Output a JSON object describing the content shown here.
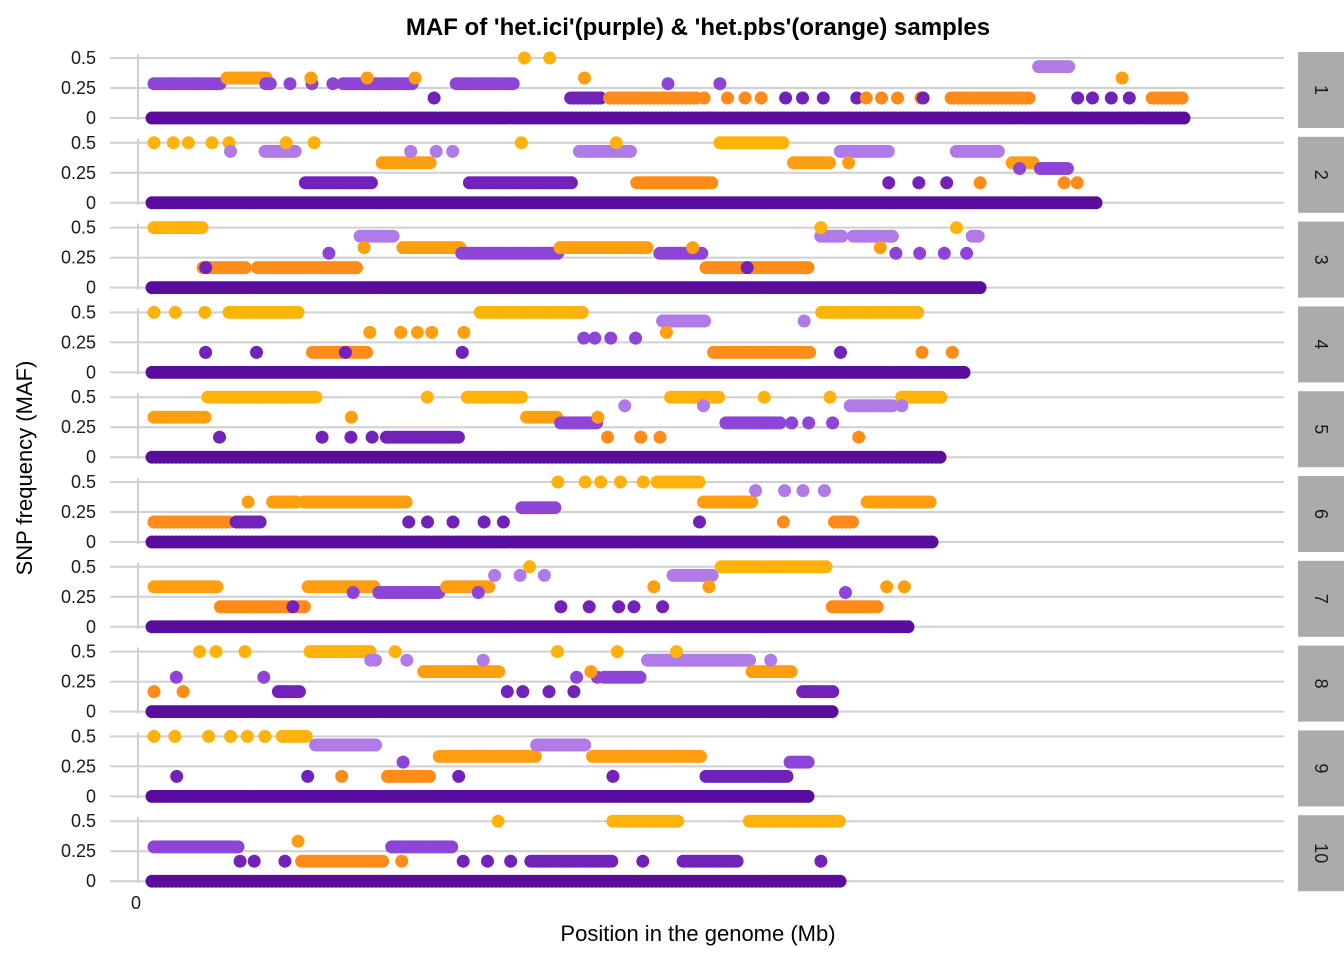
{
  "chart_data": {
    "type": "scatter",
    "title": "MAF of 'het.ici'(purple) & 'het.pbs'(orange) samples",
    "xlabel": "Position in the genome (Mb)",
    "ylabel": "SNP frequency (MAF)",
    "x_ticks": [
      "0"
    ],
    "y_ticks": [
      {
        "value": 0,
        "label": "0"
      },
      {
        "value": 0.25,
        "label": "0.25"
      },
      {
        "value": 0.5,
        "label": "0.5"
      }
    ],
    "ylim": [
      0,
      0.5
    ],
    "xlim": [
      0,
      1
    ],
    "maf_levels": [
      0,
      0.1667,
      0.2857,
      0.3333,
      0.4286,
      0.5
    ],
    "series": [
      {
        "name": "het.pbs",
        "description": "orange",
        "colors": {
          "0.1667": "#FF8C1A",
          "0.3333": "#FF9F0F",
          "0.5": "#FFB30A"
        }
      },
      {
        "name": "het.ici",
        "description": "purple",
        "colors": {
          "0": "#5A0C9E",
          "0.1667": "#7122B8",
          "0.2857": "#8E44D6",
          "0.4286": "#B07AE8"
        }
      }
    ],
    "panels": [
      {
        "label": "1",
        "chrom_end_fraction": 0.94
      },
      {
        "label": "2",
        "chrom_end_fraction": 0.86
      },
      {
        "label": "3",
        "chrom_end_fraction": 0.755
      },
      {
        "label": "4",
        "chrom_end_fraction": 0.74
      },
      {
        "label": "5",
        "chrom_end_fraction": 0.72
      },
      {
        "label": "6",
        "chrom_end_fraction": 0.711
      },
      {
        "label": "7",
        "chrom_end_fraction": 0.69
      },
      {
        "label": "8",
        "chrom_end_fraction": 0.62
      },
      {
        "label": "9",
        "chrom_end_fraction": 0.598
      },
      {
        "label": "10",
        "chrom_end_fraction": 0.627
      }
    ]
  }
}
